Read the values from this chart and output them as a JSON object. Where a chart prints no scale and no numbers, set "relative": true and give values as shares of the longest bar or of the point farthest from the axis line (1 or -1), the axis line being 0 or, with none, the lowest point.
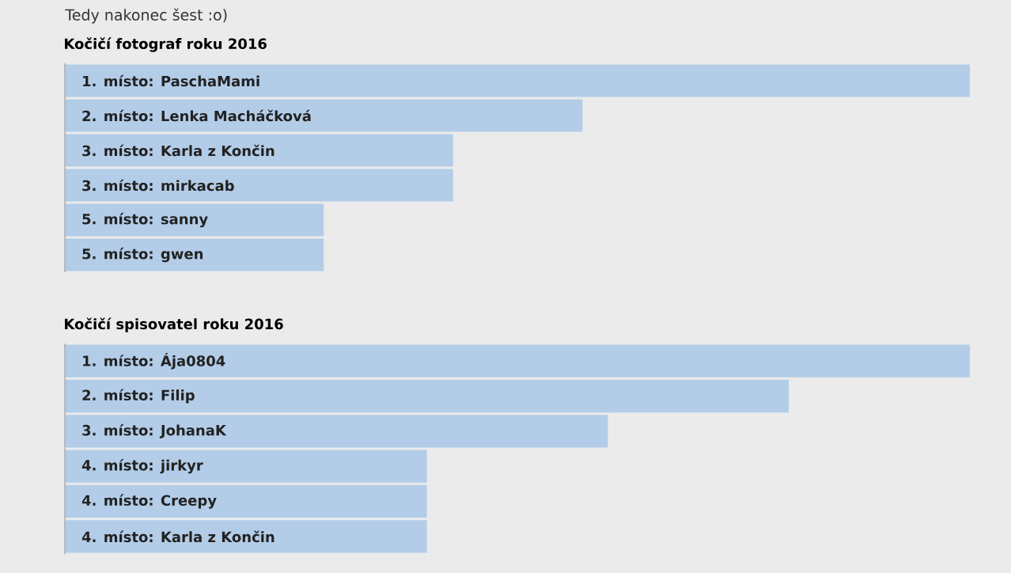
{
  "chart_data": [
    {
      "type": "bar",
      "orientation": "horizontal",
      "relative": true,
      "title": "Kočičí fotograf roku 2016",
      "annotations": [
        "Tedy nakonec šest :o)"
      ],
      "categories": [
        "1. místo: PaschaMami",
        "2. místo: Lenka Macháčková",
        "3. místo: Karla z Končin",
        "3. místo: mirkacab",
        "5. místo: sanny",
        "5. místo: gwen"
      ],
      "color": "#b3cde8",
      "values": [
        1,
        0.572,
        0.429,
        0.429,
        0.286,
        0.286
      ]
    },
    {
      "type": "bar",
      "orientation": "horizontal",
      "relative": true,
      "title": "Kočičí spisovatel roku 2016",
      "categories": [
        "1. místo: Ája0804",
        "2. místo: Filip",
        "3. místo: JohanaK",
        "4. místo: jirkyr",
        "4. místo: Creepy",
        "4. místo: Karla z Končin"
      ],
      "color": "#b3cde8",
      "values": [
        1,
        0.8,
        0.6,
        0.4,
        0.4,
        0.4
      ]
    }
  ]
}
